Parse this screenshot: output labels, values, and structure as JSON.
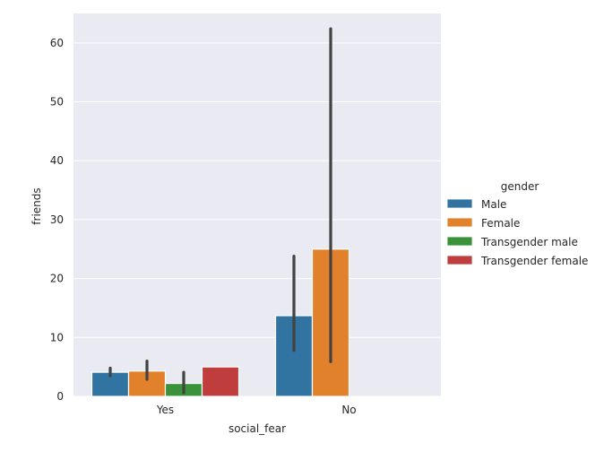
{
  "chart_data": {
    "type": "bar",
    "xlabel": "social_fear",
    "ylabel": "friends",
    "categories": [
      "Yes",
      "No"
    ],
    "ylim": [
      0,
      65
    ],
    "yticks": [
      0,
      10,
      20,
      30,
      40,
      50,
      60
    ],
    "grid": true,
    "legend": {
      "title": "gender",
      "placement": "right"
    },
    "series": [
      {
        "name": "Male",
        "color": "#3274a1",
        "values": [
          4.1,
          13.7
        ],
        "ci": [
          [
            3.5,
            4.8
          ],
          [
            7.8,
            23.8
          ]
        ]
      },
      {
        "name": "Female",
        "color": "#e1812c",
        "values": [
          4.3,
          25.0
        ],
        "ci": [
          [
            2.9,
            6.0
          ],
          [
            5.9,
            62.4
          ]
        ]
      },
      {
        "name": "Transgender male",
        "color": "#3a923a",
        "values": [
          2.2,
          null
        ],
        "ci": [
          [
            0.6,
            4.1
          ],
          null
        ]
      },
      {
        "name": "Transgender female",
        "color": "#c03d3e",
        "values": [
          5.0,
          null
        ],
        "ci": [
          [
            5.0,
            5.0
          ],
          null
        ]
      }
    ]
  }
}
